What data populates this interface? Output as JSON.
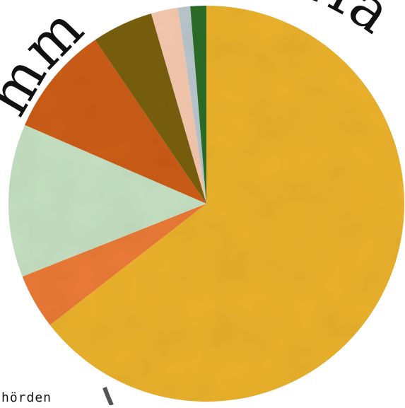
{
  "heading_fragment": "mm",
  "heading_fragment_right": "erfa",
  "bottom_fragment": "hörden",
  "chart_data": {
    "type": "pie",
    "title": "",
    "start": "top",
    "direction": "clockwise",
    "legend": "none",
    "slices": [
      {
        "value": 64.5,
        "color": "#e9b12f"
      },
      {
        "value": 4.5,
        "color": "#ea7a38"
      },
      {
        "value": 12.5,
        "color": "#c5dfc1"
      },
      {
        "value": 9.0,
        "color": "#cb5d1b"
      },
      {
        "value": 5.0,
        "color": "#786016"
      },
      {
        "value": 2.2,
        "color": "#f4c7ad"
      },
      {
        "value": 1.0,
        "color": "#b9c6cc"
      },
      {
        "value": 1.3,
        "color": "#2f6d2b"
      }
    ]
  }
}
